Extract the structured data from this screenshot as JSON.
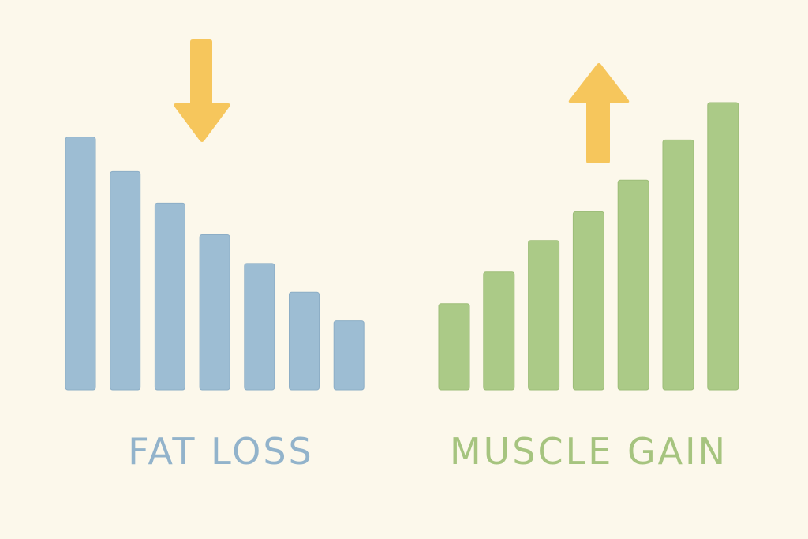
{
  "colors": {
    "background": "#fcf8eb",
    "fat_loss_bar": "#9dbdd3",
    "fat_loss_stroke": "#8daec6",
    "fat_loss_text": "#92b3cb",
    "muscle_gain_bar": "#abca87",
    "muscle_gain_stroke": "#9dbd78",
    "muscle_gain_text": "#a6c47f",
    "arrow": "#f6c65c"
  },
  "chart_data": [
    {
      "type": "bar",
      "title": "FAT LOSS",
      "trend_icon": "arrow-down-icon",
      "values": [
        88,
        76,
        65,
        54,
        44,
        34,
        24
      ],
      "ylim": [
        0,
        100
      ],
      "grid": false
    },
    {
      "type": "bar",
      "title": "MUSCLE GAIN",
      "trend_icon": "arrow-up-icon",
      "values": [
        30,
        41,
        52,
        62,
        73,
        87,
        100
      ],
      "ylim": [
        0,
        100
      ],
      "grid": false
    }
  ]
}
